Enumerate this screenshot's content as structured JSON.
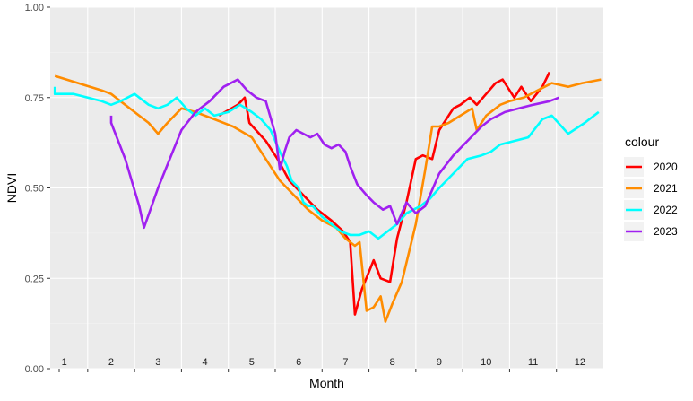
{
  "chart_data": {
    "type": "line",
    "title": "",
    "xlabel": "Month",
    "ylabel": "NDVI",
    "xlim": [
      0.7,
      12.5
    ],
    "ylim": [
      0,
      1
    ],
    "y_ticks": [
      "0.00",
      "0.25",
      "0.50",
      "0.75",
      "1.00"
    ],
    "y_tick_values": [
      0,
      0.25,
      0.5,
      0.75,
      1.0
    ],
    "month_labels": [
      "1",
      "2",
      "3",
      "4",
      "5",
      "6",
      "7",
      "8",
      "9",
      "10",
      "11",
      "12"
    ],
    "month_separators": [
      1.5,
      2.5,
      3.5,
      4.5,
      5.5,
      6.5,
      7.5,
      8.5,
      9.5,
      10.5,
      11.5
    ],
    "grid": true,
    "legend": {
      "title": "colour",
      "position": "right"
    },
    "series": [
      {
        "name": "2020",
        "color": "#ff0000",
        "x": [
          4.3,
          4.7,
          4.85,
          4.95,
          5.3,
          5.55,
          5.8,
          6.1,
          6.4,
          6.7,
          6.95,
          7.0,
          7.05,
          7.1,
          7.2,
          7.35,
          7.6,
          7.75,
          7.95,
          8.1,
          8.3,
          8.5,
          8.65,
          8.85,
          9.0,
          9.2,
          9.3,
          9.45,
          9.65,
          9.8,
          10.0,
          10.2,
          10.35,
          10.6,
          10.75,
          10.95,
          11.2,
          11.35
        ],
        "y": [
          0.7,
          0.73,
          0.75,
          0.68,
          0.63,
          0.58,
          0.52,
          0.48,
          0.44,
          0.41,
          0.38,
          0.37,
          0.36,
          0.35,
          0.15,
          0.22,
          0.3,
          0.25,
          0.24,
          0.36,
          0.46,
          0.58,
          0.59,
          0.58,
          0.66,
          0.7,
          0.72,
          0.73,
          0.75,
          0.73,
          0.76,
          0.79,
          0.8,
          0.75,
          0.78,
          0.74,
          0.78,
          0.82
        ]
      },
      {
        "name": "2021",
        "color": "#ff8c00",
        "x": [
          0.8,
          1.8,
          2.0,
          2.2,
          2.5,
          2.8,
          3.0,
          3.2,
          3.5,
          3.8,
          4.2,
          4.6,
          5.0,
          5.3,
          5.6,
          5.9,
          6.2,
          6.5,
          6.8,
          7.0,
          7.1,
          7.2,
          7.3,
          7.45,
          7.6,
          7.75,
          7.85,
          8.0,
          8.2,
          8.5,
          8.7,
          8.85,
          9.0,
          9.2,
          9.45,
          9.7,
          9.8,
          10.0,
          10.3,
          10.5,
          10.8,
          11.1,
          11.4,
          11.75,
          12.05,
          12.45
        ],
        "y": [
          0.81,
          0.77,
          0.76,
          0.74,
          0.71,
          0.68,
          0.65,
          0.68,
          0.72,
          0.71,
          0.69,
          0.67,
          0.64,
          0.58,
          0.52,
          0.48,
          0.44,
          0.41,
          0.39,
          0.36,
          0.35,
          0.34,
          0.35,
          0.16,
          0.17,
          0.2,
          0.13,
          0.18,
          0.24,
          0.4,
          0.55,
          0.67,
          0.67,
          0.68,
          0.7,
          0.72,
          0.66,
          0.7,
          0.73,
          0.74,
          0.75,
          0.77,
          0.79,
          0.78,
          0.79,
          0.8
        ]
      },
      {
        "name": "2022",
        "color": "#00ffff",
        "x": [
          0.8,
          0.8,
          1.2,
          1.5,
          1.8,
          2.0,
          2.2,
          2.5,
          2.8,
          3.0,
          3.2,
          3.4,
          3.6,
          3.8,
          4.0,
          4.2,
          4.5,
          4.75,
          5.0,
          5.2,
          5.4,
          5.6,
          5.75,
          5.85,
          6.0,
          6.1,
          6.2,
          6.3,
          6.5,
          6.7,
          6.9,
          7.1,
          7.3,
          7.5,
          7.7,
          7.9,
          8.1,
          8.3,
          8.6,
          8.8,
          9.0,
          9.3,
          9.6,
          9.9,
          10.1,
          10.3,
          10.6,
          10.9,
          11.2,
          11.4,
          11.75,
          12.1,
          12.4
        ],
        "y": [
          0.78,
          0.76,
          0.76,
          0.75,
          0.74,
          0.73,
          0.74,
          0.76,
          0.73,
          0.72,
          0.73,
          0.75,
          0.72,
          0.7,
          0.72,
          0.7,
          0.71,
          0.73,
          0.71,
          0.69,
          0.66,
          0.6,
          0.56,
          0.52,
          0.5,
          0.46,
          0.45,
          0.45,
          0.42,
          0.4,
          0.38,
          0.37,
          0.37,
          0.38,
          0.36,
          0.38,
          0.4,
          0.43,
          0.45,
          0.47,
          0.5,
          0.54,
          0.58,
          0.59,
          0.6,
          0.62,
          0.63,
          0.64,
          0.69,
          0.7,
          0.65,
          0.68,
          0.71
        ]
      },
      {
        "name": "2023",
        "color": "#a020f0",
        "x": [
          2.0,
          2.0,
          2.3,
          2.6,
          2.7,
          3.0,
          3.5,
          3.8,
          4.1,
          4.4,
          4.7,
          4.9,
          5.1,
          5.3,
          5.5,
          5.6,
          5.7,
          5.8,
          5.95,
          6.1,
          6.25,
          6.4,
          6.55,
          6.7,
          6.85,
          7.0,
          7.1,
          7.25,
          7.45,
          7.6,
          7.8,
          7.95,
          8.1,
          8.3,
          8.5,
          8.7,
          9.0,
          9.3,
          9.6,
          9.9,
          10.1,
          10.4,
          10.7,
          11.0,
          11.35,
          11.55
        ],
        "y": [
          0.7,
          0.68,
          0.58,
          0.45,
          0.39,
          0.5,
          0.66,
          0.71,
          0.74,
          0.78,
          0.8,
          0.77,
          0.75,
          0.74,
          0.65,
          0.55,
          0.6,
          0.64,
          0.66,
          0.65,
          0.64,
          0.65,
          0.62,
          0.61,
          0.62,
          0.6,
          0.56,
          0.51,
          0.48,
          0.46,
          0.44,
          0.45,
          0.4,
          0.46,
          0.43,
          0.45,
          0.54,
          0.59,
          0.63,
          0.67,
          0.69,
          0.71,
          0.72,
          0.73,
          0.74,
          0.75
        ]
      }
    ]
  }
}
